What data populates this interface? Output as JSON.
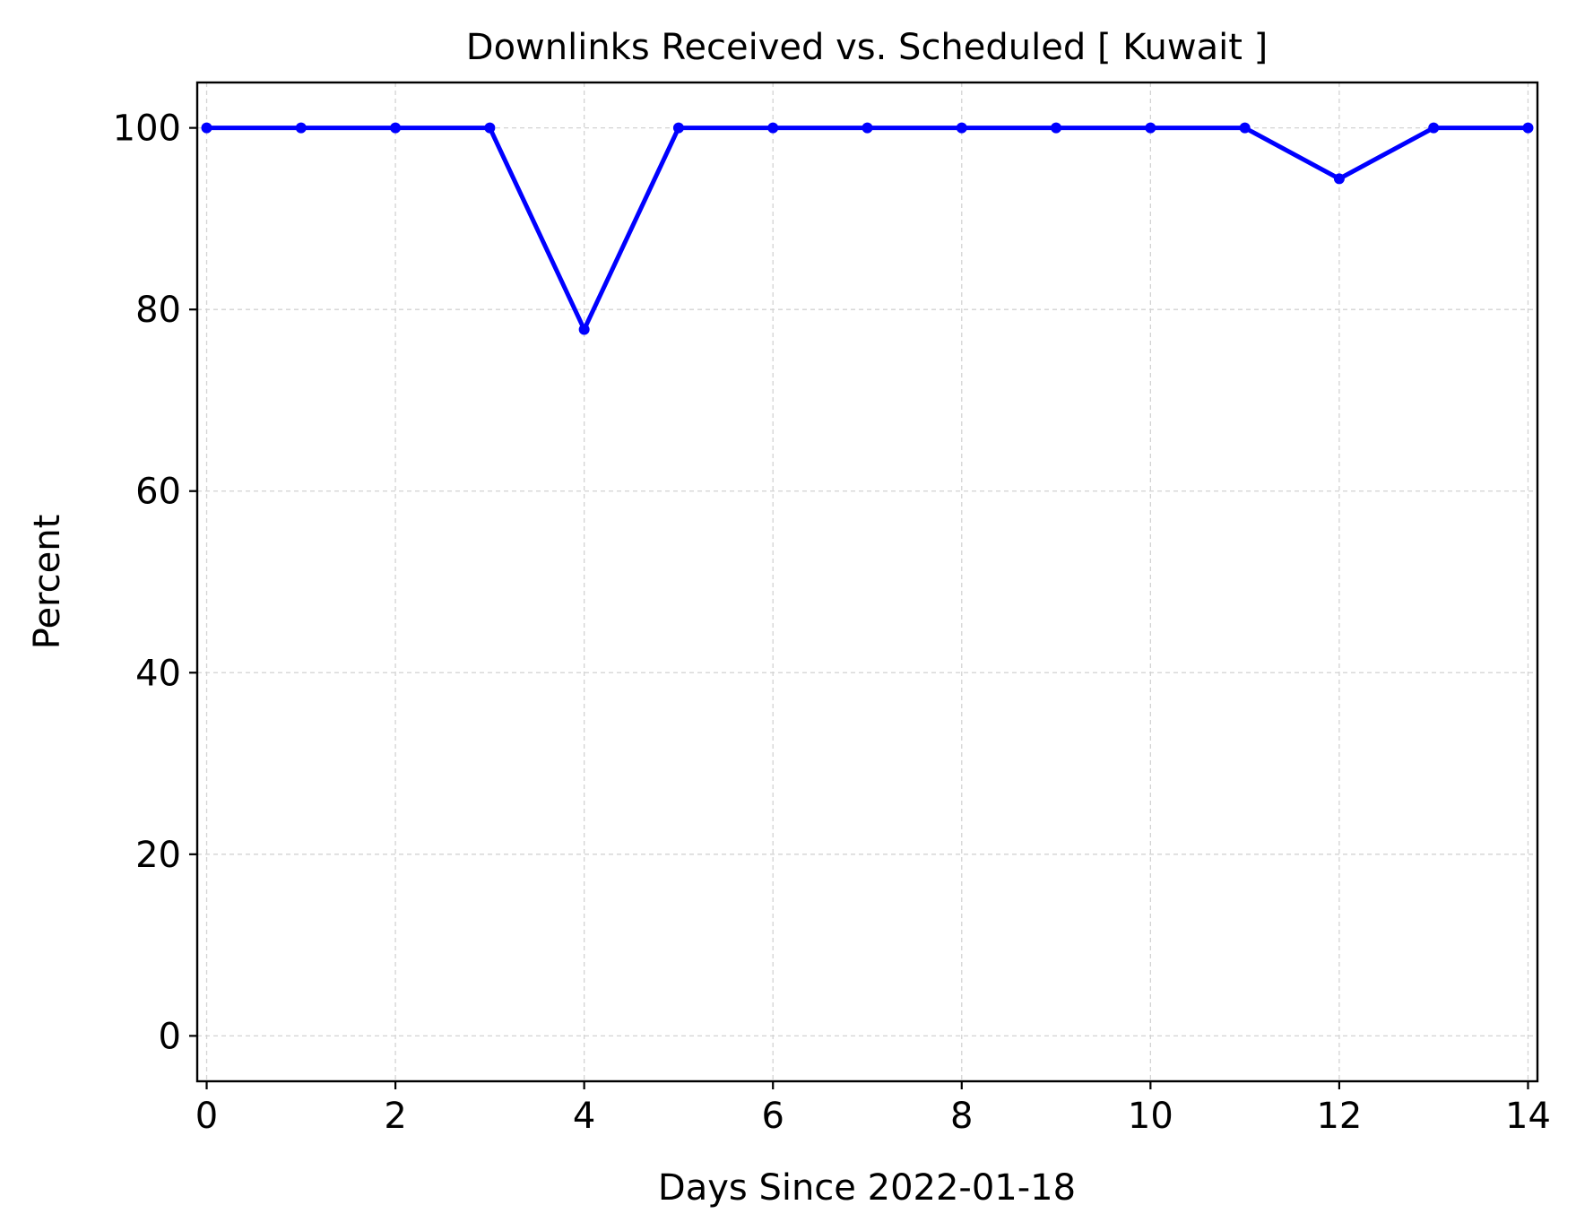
{
  "chart_data": {
    "type": "line",
    "title": "Downlinks Received vs. Scheduled [ Kuwait ]",
    "xlabel": "Days Since 2022-01-18",
    "ylabel": "Percent",
    "xlim": [
      -0.1,
      14.1
    ],
    "ylim": [
      -5,
      105
    ],
    "xticks": [
      0,
      2,
      4,
      6,
      8,
      10,
      12,
      14
    ],
    "yticks": [
      0,
      20,
      40,
      60,
      80,
      100
    ],
    "grid": true,
    "legend": false,
    "series": [
      {
        "color": "#0000ff",
        "marker": "circle",
        "x": [
          0,
          1,
          2,
          3,
          4,
          5,
          6,
          7,
          8,
          9,
          10,
          11,
          12,
          13,
          14
        ],
        "y": [
          100,
          100,
          100,
          100,
          77.8,
          100,
          100,
          100,
          100,
          100,
          100,
          100,
          94.4,
          100,
          100
        ]
      }
    ]
  }
}
